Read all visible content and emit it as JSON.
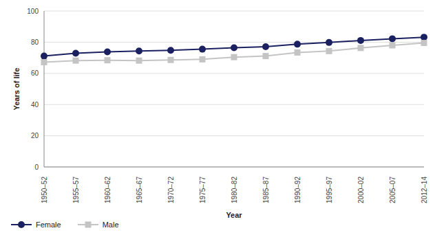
{
  "chart_data": {
    "type": "line",
    "x_label": "Year",
    "y_label": "Years of life",
    "categories": [
      "1950–52",
      "1955–57",
      "1960–62",
      "1965–67",
      "1970–72",
      "1975–77",
      "1980–82",
      "1985–87",
      "1990–92",
      "1995–97",
      "2000–02",
      "2005–07",
      "2012–14"
    ],
    "series": [
      {
        "name": "Female",
        "color": "#1b2160",
        "marker": "circle",
        "values": [
          71.1,
          72.9,
          73.8,
          74.3,
          74.8,
          75.5,
          76.4,
          77.1,
          78.7,
          79.8,
          81.1,
          82.2,
          83.2
        ]
      },
      {
        "name": "Male",
        "color": "#c4c4c4",
        "marker": "square",
        "values": [
          67.2,
          68.2,
          68.4,
          68.2,
          68.6,
          69.0,
          70.4,
          71.1,
          73.4,
          74.3,
          76.3,
          78.0,
          79.5
        ]
      }
    ],
    "ylim": [
      0,
      100
    ],
    "yticks": [
      0,
      20,
      40,
      60,
      80,
      100
    ],
    "grid": true,
    "legend": "bottom-left"
  }
}
